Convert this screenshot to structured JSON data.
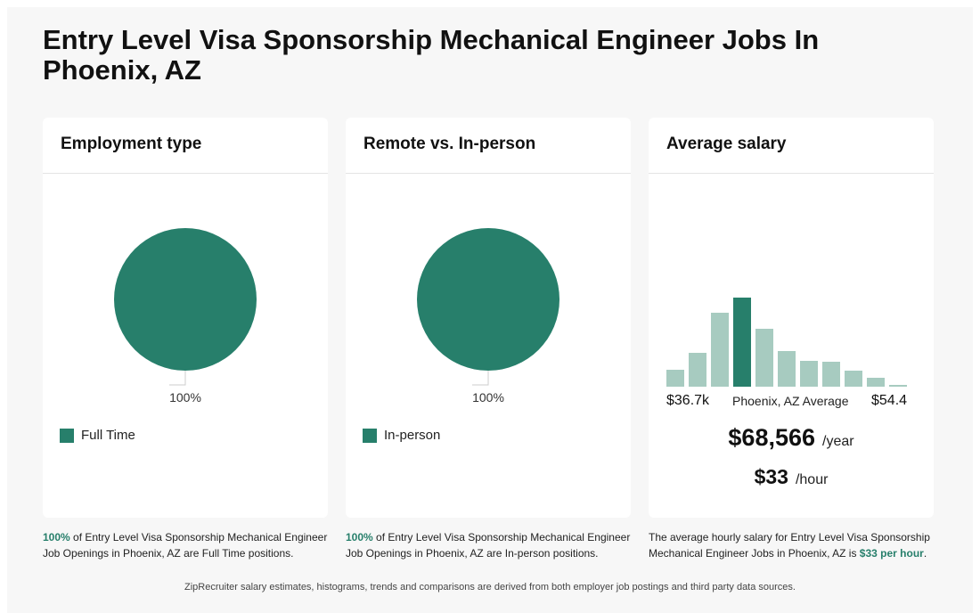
{
  "title": "Entry Level Visa Sponsorship Mechanical Engineer Jobs In Phoenix, AZ",
  "colors": {
    "accent": "#277f6b",
    "muted": "#a7cbc0",
    "bg": "#f7f7f7"
  },
  "cards": {
    "employment": {
      "header": "Employment type",
      "pie_label": "100%",
      "legend": "Full Time",
      "caption_pct": "100%",
      "caption_rest": " of Entry Level Visa Sponsorship Mechanical Engineer Job Openings in Phoenix, AZ are Full Time positions."
    },
    "remote": {
      "header": "Remote vs. In-person",
      "pie_label": "100%",
      "legend": "In-person",
      "caption_pct": "100%",
      "caption_rest": " of Entry Level Visa Sponsorship Mechanical Engineer Job Openings in Phoenix, AZ are In-person positions."
    },
    "salary": {
      "header": "Average salary",
      "range_min": "$36.7k",
      "range_mid": "Phoenix, AZ Average",
      "range_max": "$54.4",
      "year_value": "$68,566",
      "year_unit": "/year",
      "hour_value": "$33",
      "hour_unit": "/hour",
      "caption_pre": "The average hourly salary for Entry Level Visa Sponsorship Mechanical Engineer Jobs in Phoenix, AZ is ",
      "caption_hl": "$33 per hour",
      "caption_post": "."
    }
  },
  "footer": "ZipRecruiter salary estimates, histograms, trends and comparisons are derived from both employer job postings and third party data sources.",
  "chart_data": [
    {
      "type": "pie",
      "categories": [
        "Full Time"
      ],
      "values": [
        100
      ]
    },
    {
      "type": "pie",
      "categories": [
        "In-person"
      ],
      "values": [
        100
      ]
    },
    {
      "type": "bar",
      "values": [
        19,
        38,
        83,
        100,
        65,
        40,
        29,
        28,
        18,
        10,
        2
      ],
      "highlight_index": 3,
      "ylim": [
        0,
        100
      ]
    }
  ]
}
